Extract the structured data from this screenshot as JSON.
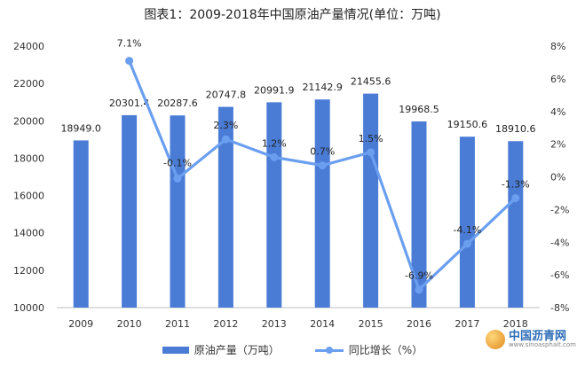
{
  "chart_data": {
    "type": "bar+line",
    "title": "图表1：2009-2018年中国原油产量情况(单位：万吨)",
    "categories": [
      "2009",
      "2010",
      "2011",
      "2012",
      "2013",
      "2014",
      "2015",
      "2016",
      "2017",
      "2018"
    ],
    "series": [
      {
        "name": "原油产量（万吨）",
        "type": "bar",
        "axis": "left",
        "values": [
          18949.0,
          20301.4,
          20287.6,
          20747.8,
          20991.9,
          21142.9,
          21455.6,
          19968.5,
          19150.6,
          18910.6
        ],
        "labels": [
          "18949.0",
          "20301.4",
          "20287.6",
          "20747.8",
          "20991.9",
          "21142.9",
          "21455.6",
          "19968.5",
          "19150.6",
          "18910.6"
        ]
      },
      {
        "name": "同比增长（%）",
        "type": "line",
        "axis": "right",
        "values": [
          null,
          7.1,
          -0.1,
          2.3,
          1.2,
          0.7,
          1.5,
          -6.9,
          -4.1,
          -1.3
        ],
        "labels": [
          "",
          "7.1%",
          "-0.1%",
          "2.3%",
          "1.2%",
          "0.7%",
          "1.5%",
          "-6.9%",
          "-4.1%",
          "-1.3%"
        ]
      }
    ],
    "y_left": {
      "min": 10000,
      "max": 24000,
      "ticks": [
        "10000",
        "12000",
        "14000",
        "16000",
        "18000",
        "20000",
        "22000",
        "24000"
      ]
    },
    "y_right": {
      "min": -8,
      "max": 8,
      "ticks": [
        "-8%",
        "-6%",
        "-4%",
        "-2%",
        "0%",
        "2%",
        "4%",
        "6%",
        "8%"
      ]
    },
    "grid": false,
    "legend_position": "bottom"
  },
  "colors": {
    "bar": "#4a7cd6",
    "line": "#6a9ff0",
    "axis": "#bfbfbf"
  },
  "brand": {
    "name": "中国沥青网",
    "url": "www.sinoasphalt.com",
    "icon": "brand-logo-icon"
  }
}
